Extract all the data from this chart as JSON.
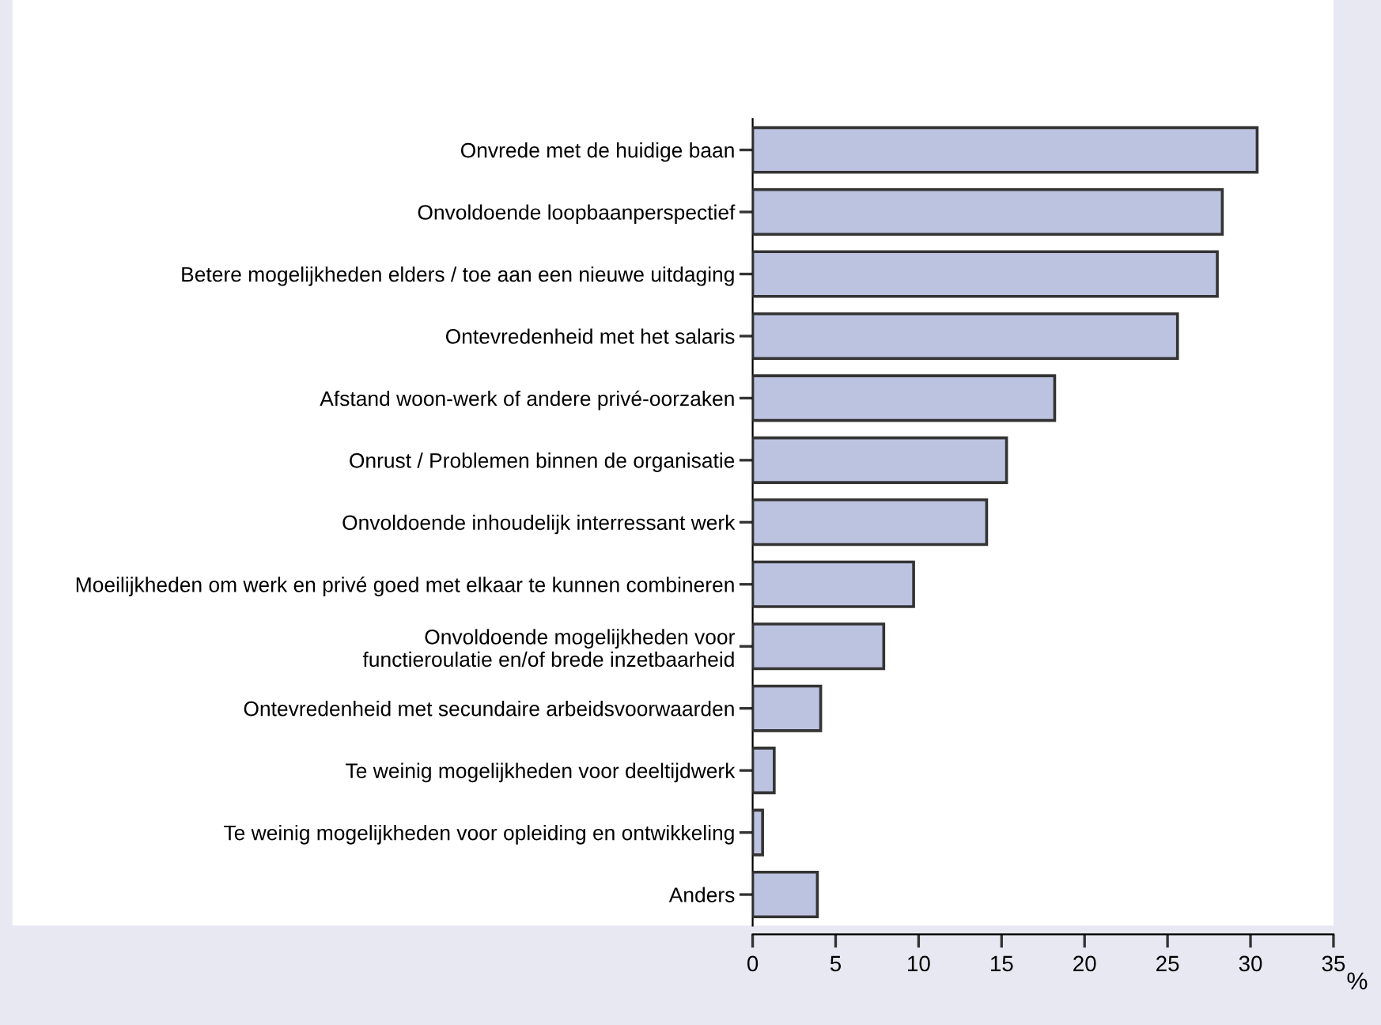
{
  "chart_data": {
    "type": "bar",
    "orientation": "horizontal",
    "categories": [
      "Onvrede met de huidige baan",
      "Onvoldoende loopbaanperspectief",
      "Betere mogelijkheden elders / toe aan een nieuwe uitdaging",
      "Ontevredenheid met het salaris",
      "Afstand woon-werk of andere privé-oorzaken",
      "Onrust / Problemen binnen de organisatie",
      "Onvoldoende inhoudelijk interressant werk",
      "Moeilijkheden om werk en privé goed met elkaar te kunnen combineren",
      "Onvoldoende mogelijkheden voor\nfunctieroulatie en/of brede inzetbaarheid",
      "Ontevredenheid met secundaire arbeidsvoorwaarden",
      "Te weinig mogelijkheden voor deeltijdwerk",
      "Te weinig mogelijkheden voor opleiding en ontwikkeling",
      "Anders"
    ],
    "values": [
      30.4,
      28.3,
      28.0,
      25.6,
      18.2,
      15.3,
      14.1,
      9.7,
      7.9,
      4.1,
      1.3,
      0.6,
      3.9
    ],
    "color": "#bcc3e0",
    "xlabel": "%",
    "xlim": [
      0,
      35
    ],
    "xticks": [
      0,
      5,
      10,
      15,
      20,
      25,
      30,
      35
    ],
    "grid": false
  }
}
